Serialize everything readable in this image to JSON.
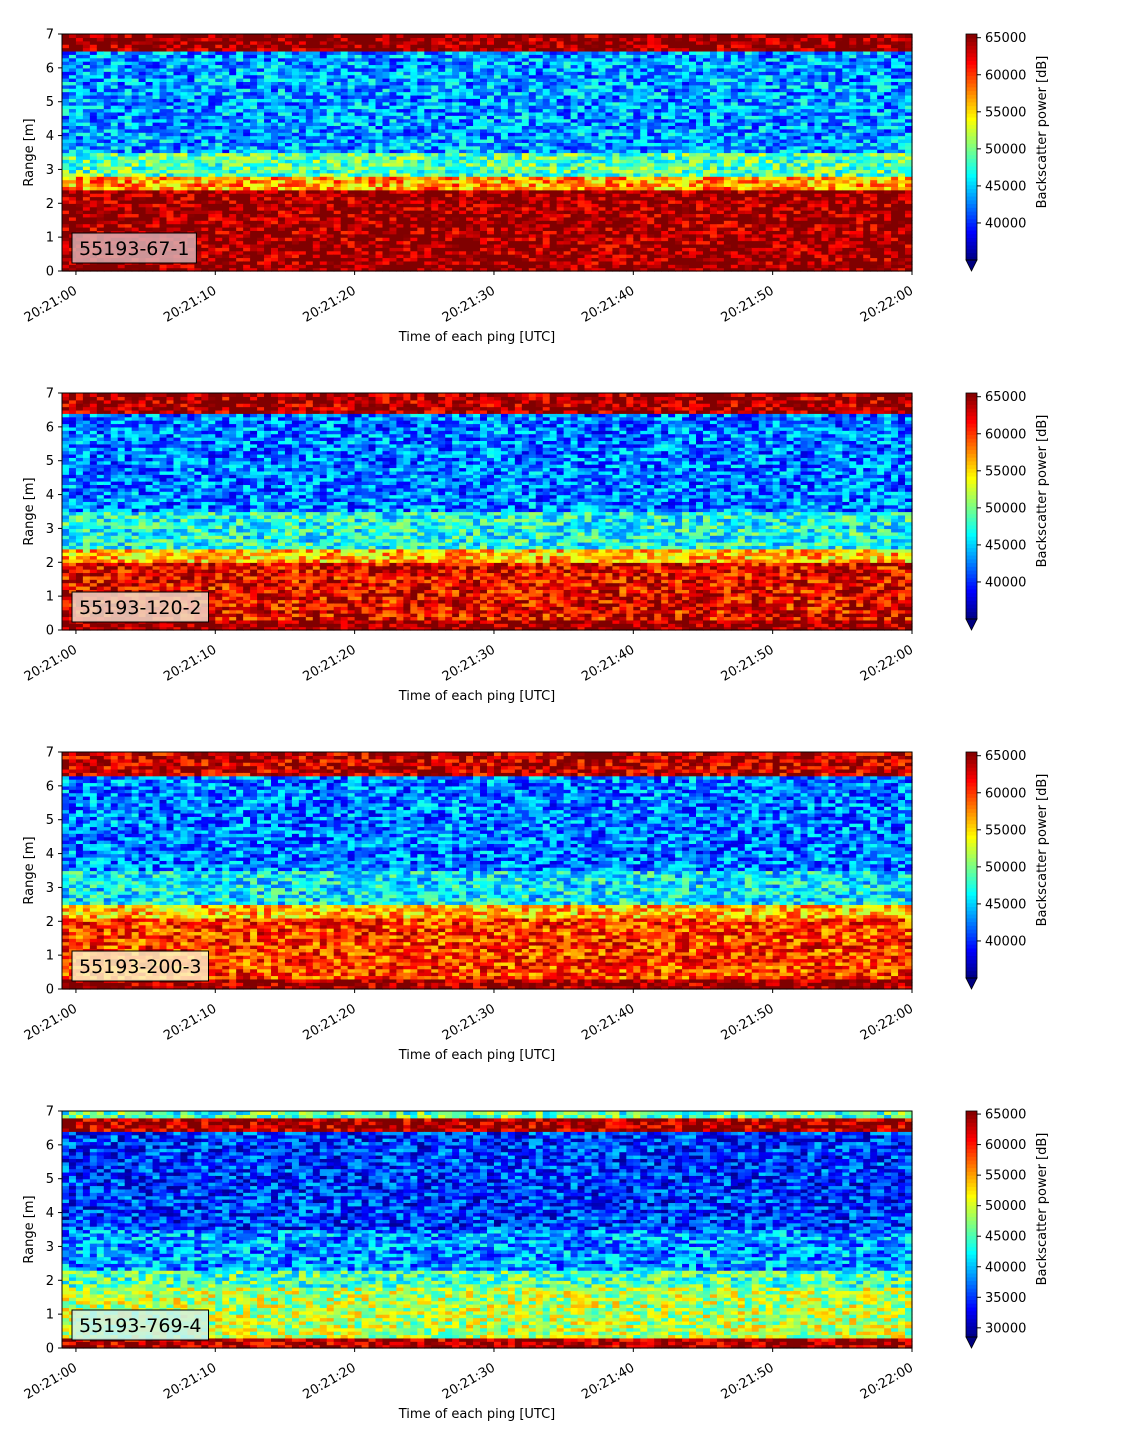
{
  "chart_data": [
    {
      "type": "heatmap",
      "label": "55193-67-1",
      "xlabel": "Time of each ping [UTC]",
      "ylabel": "Range [m]",
      "xlim_seconds": [
        0,
        61
      ],
      "ylim": [
        0,
        7
      ],
      "y_ticks": [
        "0",
        "1",
        "2",
        "3",
        "4",
        "5",
        "6",
        "7"
      ],
      "x_ticks": [
        "20:21:00",
        "20:21:10",
        "20:21:20",
        "20:21:30",
        "20:21:40",
        "20:21:50",
        "20:22:00"
      ],
      "colorbar_label": "Backscatter power [dB]",
      "colorbar_range": [
        35000,
        65500
      ],
      "colorbar_ticks": [
        "40000",
        "45000",
        "50000",
        "55000",
        "60000",
        "65000"
      ],
      "colormap": "jet",
      "profile": [
        {
          "range": [
            0.0,
            0.25
          ],
          "value": 65500
        },
        {
          "range": [
            0.25,
            2.4
          ],
          "value": 65000
        },
        {
          "range": [
            2.4,
            2.8
          ],
          "value": 57000
        },
        {
          "range": [
            2.8,
            3.5
          ],
          "value": 49000
        },
        {
          "range": [
            3.5,
            6.5
          ],
          "value": 43500
        },
        {
          "range": [
            6.5,
            7.0
          ],
          "value": 65500
        }
      ]
    },
    {
      "type": "heatmap",
      "label": "55193-120-2",
      "xlabel": "Time of each ping [UTC]",
      "ylabel": "Range [m]",
      "xlim_seconds": [
        0,
        61
      ],
      "ylim": [
        0,
        7
      ],
      "y_ticks": [
        "0",
        "1",
        "2",
        "3",
        "4",
        "5",
        "6",
        "7"
      ],
      "x_ticks": [
        "20:21:00",
        "20:21:10",
        "20:21:20",
        "20:21:30",
        "20:21:40",
        "20:21:50",
        "20:22:00"
      ],
      "colorbar_label": "Backscatter power [dB]",
      "colorbar_range": [
        35000,
        65500
      ],
      "colorbar_ticks": [
        "40000",
        "45000",
        "50000",
        "55000",
        "60000",
        "65000"
      ],
      "colormap": "jet",
      "profile": [
        {
          "range": [
            0.0,
            0.35
          ],
          "value": 65500
        },
        {
          "range": [
            0.35,
            2.0
          ],
          "value": 62000
        },
        {
          "range": [
            2.0,
            2.4
          ],
          "value": 56000
        },
        {
          "range": [
            2.4,
            3.5
          ],
          "value": 47000
        },
        {
          "range": [
            3.5,
            6.4
          ],
          "value": 42500
        },
        {
          "range": [
            6.4,
            7.0
          ],
          "value": 64500
        }
      ]
    },
    {
      "type": "heatmap",
      "label": "55193-200-3",
      "xlabel": "Time of each ping [UTC]",
      "ylabel": "Range [m]",
      "xlim_seconds": [
        0,
        61
      ],
      "ylim": [
        0,
        7
      ],
      "y_ticks": [
        "0",
        "1",
        "2",
        "3",
        "4",
        "5",
        "6",
        "7"
      ],
      "x_ticks": [
        "20:21:00",
        "20:21:10",
        "20:21:20",
        "20:21:30",
        "20:21:40",
        "20:21:50",
        "20:22:00"
      ],
      "colorbar_label": "Backscatter power [dB]",
      "colorbar_range": [
        35000,
        65500
      ],
      "colorbar_ticks": [
        "40000",
        "45000",
        "50000",
        "55000",
        "60000",
        "65000"
      ],
      "colormap": "jet",
      "profile": [
        {
          "range": [
            0.0,
            0.3
          ],
          "value": 65000
        },
        {
          "range": [
            0.3,
            2.1
          ],
          "value": 60000
        },
        {
          "range": [
            2.1,
            2.5
          ],
          "value": 56000
        },
        {
          "range": [
            2.5,
            3.5
          ],
          "value": 46000
        },
        {
          "range": [
            3.5,
            6.3
          ],
          "value": 42500
        },
        {
          "range": [
            6.3,
            7.0
          ],
          "value": 63500
        }
      ]
    },
    {
      "type": "heatmap",
      "label": "55193-769-4",
      "xlabel": "Time of each ping [UTC]",
      "ylabel": "Range [m]",
      "xlim_seconds": [
        0,
        61
      ],
      "ylim": [
        0,
        7
      ],
      "y_ticks": [
        "0",
        "1",
        "2",
        "3",
        "4",
        "5",
        "6",
        "7"
      ],
      "x_ticks": [
        "20:21:00",
        "20:21:10",
        "20:21:20",
        "20:21:30",
        "20:21:40",
        "20:21:50",
        "20:22:00"
      ],
      "colorbar_label": "Backscatter power [dB]",
      "colorbar_range": [
        28500,
        65500
      ],
      "colorbar_ticks": [
        "30000",
        "35000",
        "40000",
        "45000",
        "50000",
        "55000",
        "60000",
        "65000"
      ],
      "colormap": "jet",
      "profile": [
        {
          "range": [
            0.0,
            0.3
          ],
          "value": 64000
        },
        {
          "range": [
            0.3,
            1.8
          ],
          "value": 49000
        },
        {
          "range": [
            1.8,
            2.3
          ],
          "value": 45000
        },
        {
          "range": [
            2.3,
            3.5
          ],
          "value": 38500
        },
        {
          "range": [
            3.5,
            6.4
          ],
          "value": 35000
        },
        {
          "range": [
            6.4,
            6.8
          ],
          "value": 64000
        },
        {
          "range": [
            6.8,
            7.0
          ],
          "value": 45000
        }
      ]
    }
  ]
}
